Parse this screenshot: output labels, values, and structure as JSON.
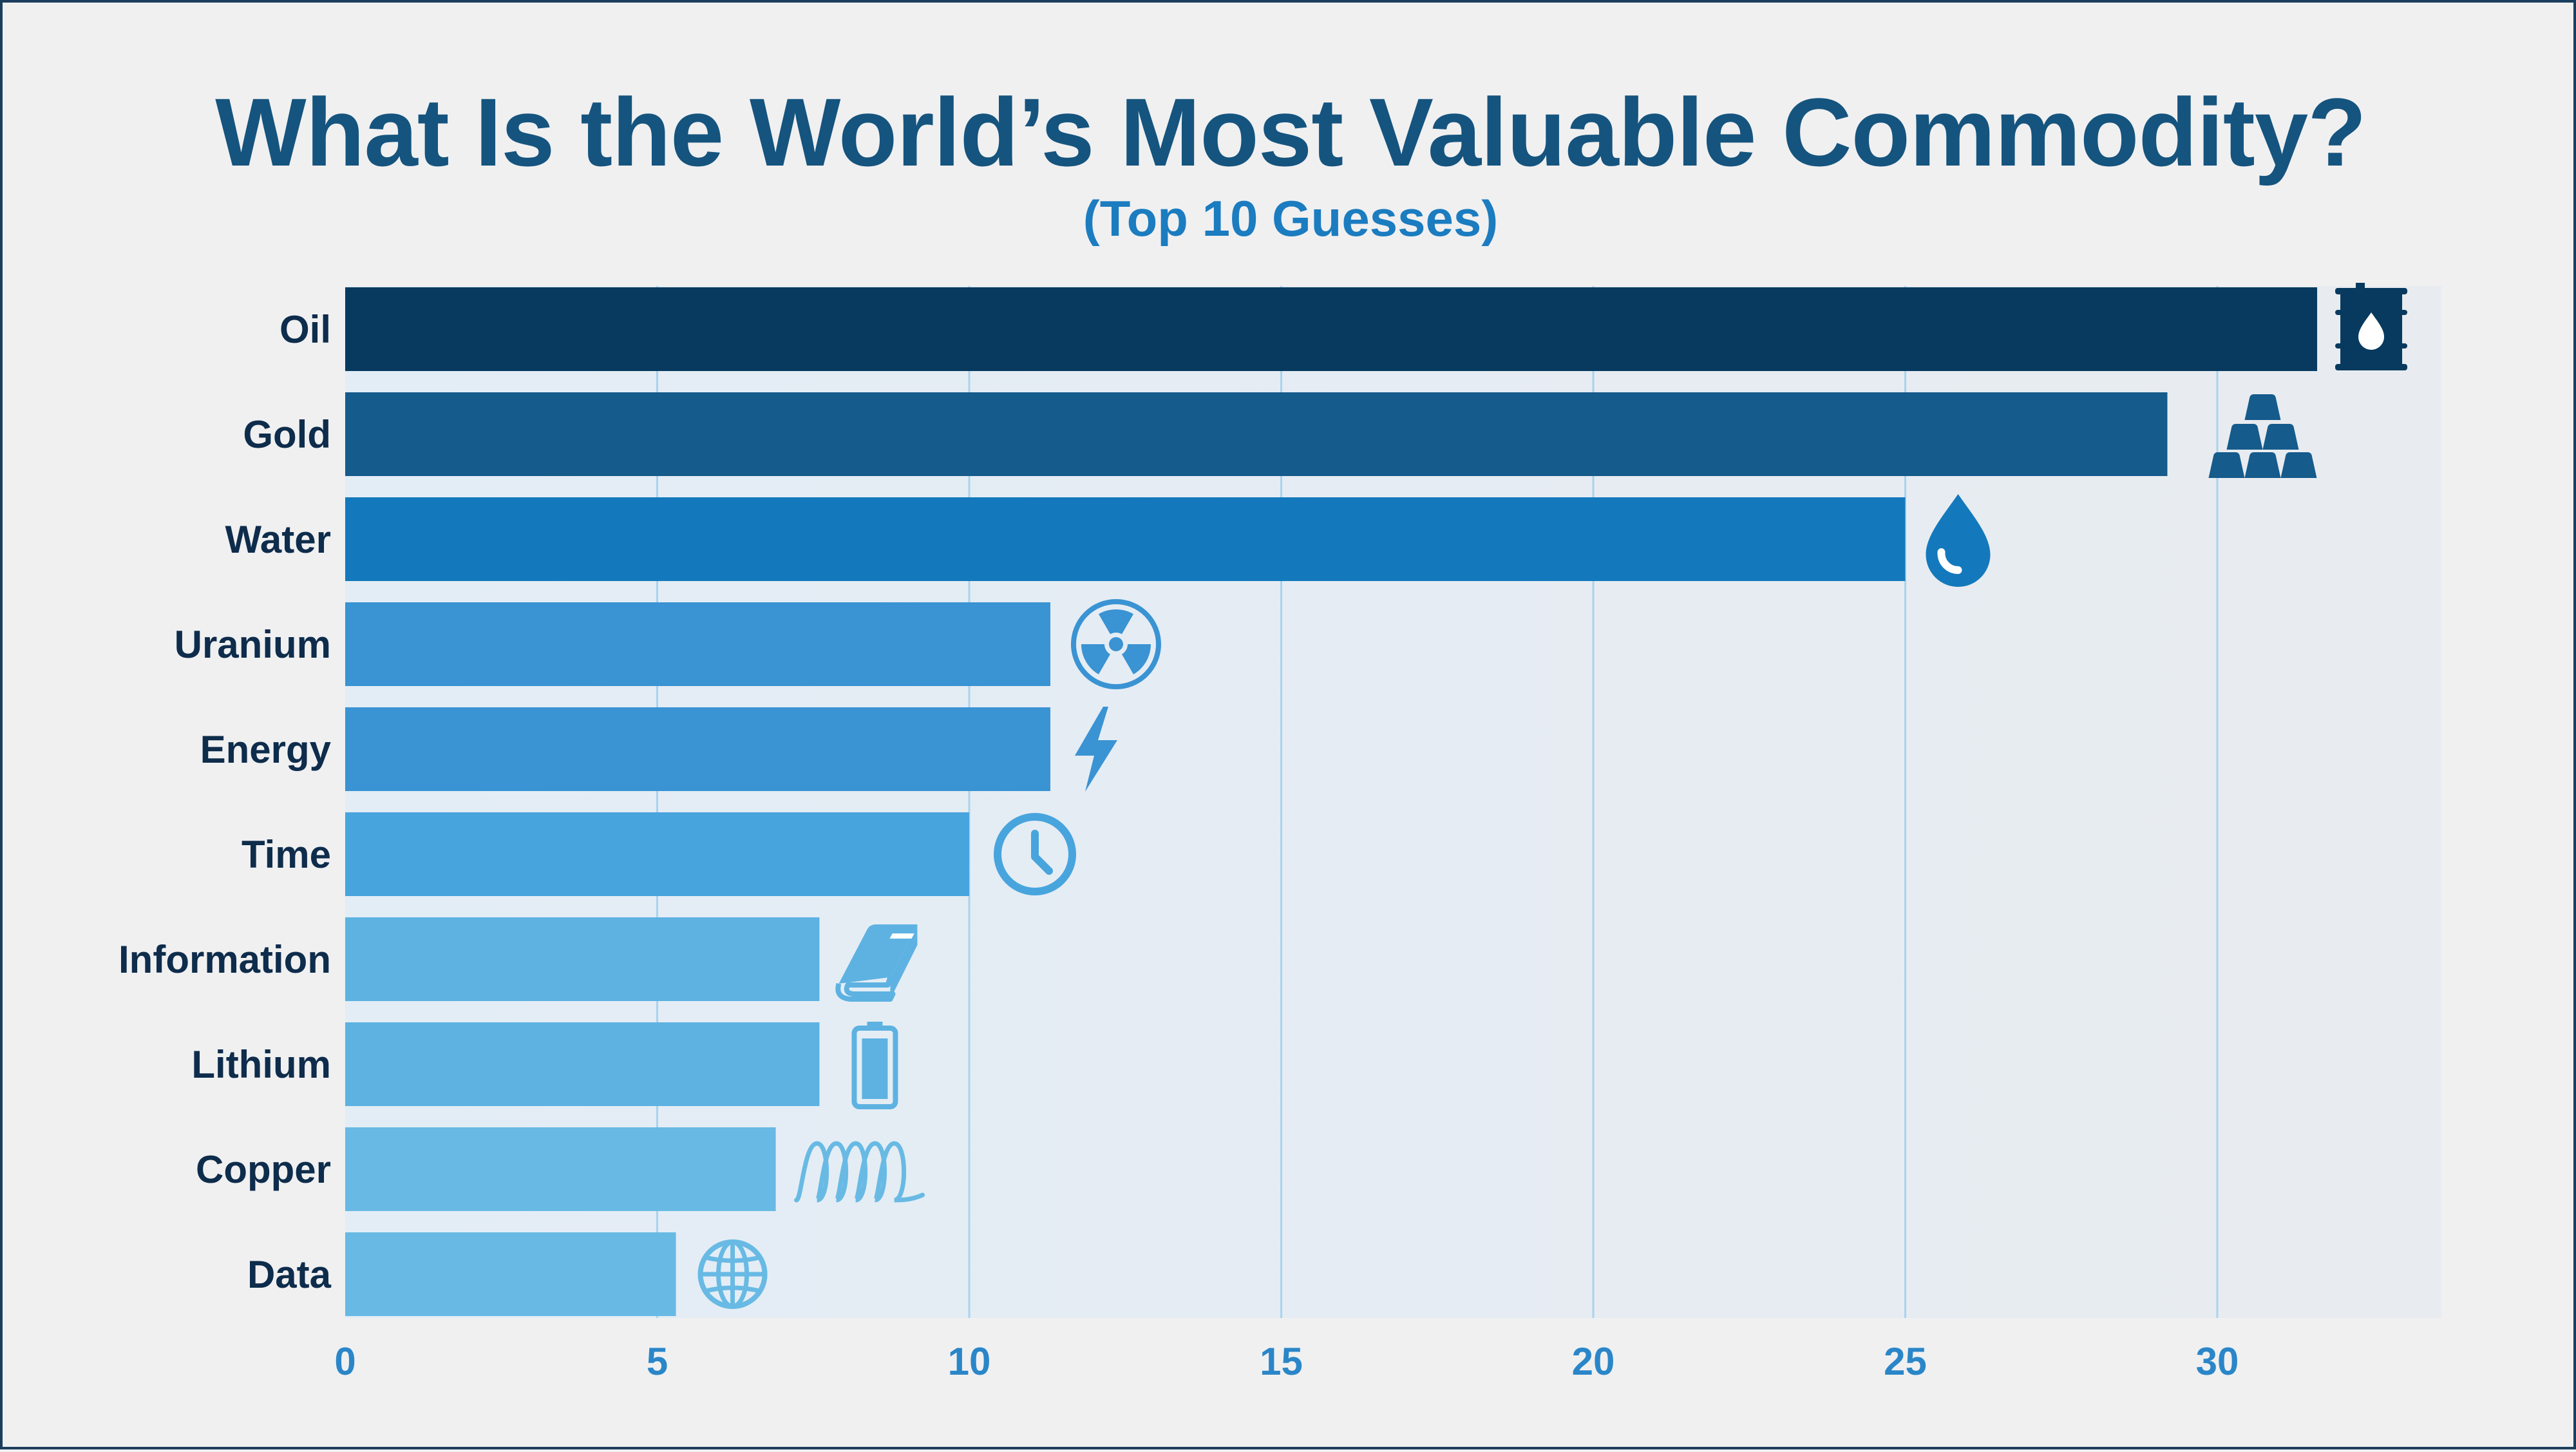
{
  "chart_data": {
    "type": "bar",
    "orientation": "horizontal",
    "title": "What Is the World’s Most Valuable Commodity?",
    "subtitle": "(Top 10 Guesses)",
    "categories": [
      "Oil",
      "Gold",
      "Water",
      "Uranium",
      "Energy",
      "Time",
      "Information",
      "Lithium",
      "Copper",
      "Data"
    ],
    "values": [
      31.6,
      29.2,
      25.0,
      11.3,
      11.3,
      10.0,
      7.6,
      7.6,
      6.9,
      5.3
    ],
    "bar_colors": [
      "#073a5e",
      "#155b8c",
      "#1379bc",
      "#3a93d3",
      "#3a93d3",
      "#48a4dd",
      "#5db2e2",
      "#5db2e2",
      "#68bae4",
      "#68bae4"
    ],
    "icons": [
      "oil-barrel-icon",
      "gold-bars-icon",
      "water-drop-icon",
      "radiation-icon",
      "lightning-icon",
      "clock-icon",
      "book-icon",
      "battery-icon",
      "copper-coil-icon",
      "globe-icon"
    ],
    "x_ticks": [
      0,
      5,
      10,
      15,
      20,
      25,
      30
    ],
    "xlim": [
      0,
      32.5
    ],
    "grid": true,
    "xlabel": "",
    "ylabel": ""
  }
}
